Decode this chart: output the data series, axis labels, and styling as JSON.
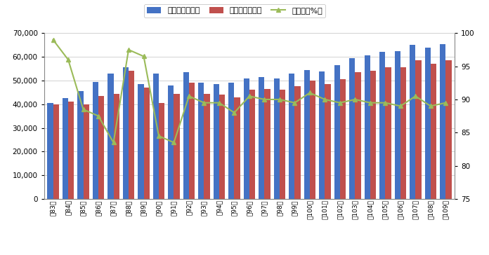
{
  "categories": [
    "第83回",
    "第84回",
    "第85回",
    "第86回",
    "第87回",
    "第88回",
    "第89回",
    "第90回",
    "第91回",
    "第92回",
    "第93回",
    "第94回",
    "第95回",
    "第96回",
    "第97回",
    "第98回",
    "第99回",
    "第100回",
    "第101回",
    "第102回",
    "第103回",
    "第104回",
    "第105回",
    "第106回",
    "第107回",
    "第108回",
    "第109回"
  ],
  "examinees": [
    40500,
    42500,
    45500,
    49500,
    53000,
    55500,
    48500,
    53000,
    48000,
    53500,
    49000,
    48500,
    49000,
    51000,
    51500,
    51000,
    53000,
    54500,
    53800,
    56500,
    59500,
    60500,
    62000,
    62500,
    65000,
    64000,
    65500
  ],
  "passers": [
    40000,
    41000,
    40000,
    43500,
    44500,
    54000,
    47000,
    40500,
    44500,
    49000,
    44500,
    44000,
    43000,
    46000,
    46500,
    46000,
    47500,
    50000,
    48500,
    50500,
    53500,
    54000,
    55500,
    55500,
    58500,
    57000,
    58500
  ],
  "pass_rate": [
    99.0,
    96.0,
    88.5,
    87.5,
    83.5,
    97.5,
    96.5,
    84.5,
    83.5,
    90.5,
    89.5,
    89.5,
    88.0,
    90.5,
    90.0,
    90.0,
    89.5,
    91.0,
    90.0,
    89.5,
    90.0,
    89.5,
    89.5,
    89.0,
    90.5,
    89.0,
    89.5
  ],
  "bar_color_blue": "#4472C4",
  "bar_color_red": "#C0504D",
  "line_color": "#9BBB59",
  "legend_labels": [
    "受験者数（人）",
    "合格者数（人）",
    "合格率（%）"
  ],
  "ylim_left": [
    0,
    70000
  ],
  "ylim_right": [
    75,
    100
  ],
  "yticks_left": [
    0,
    10000,
    20000,
    30000,
    40000,
    50000,
    60000,
    70000
  ],
  "yticks_right": [
    75,
    80,
    85,
    90,
    95,
    100
  ],
  "background_color": "#ffffff",
  "grid_color": "#c0c0c0"
}
